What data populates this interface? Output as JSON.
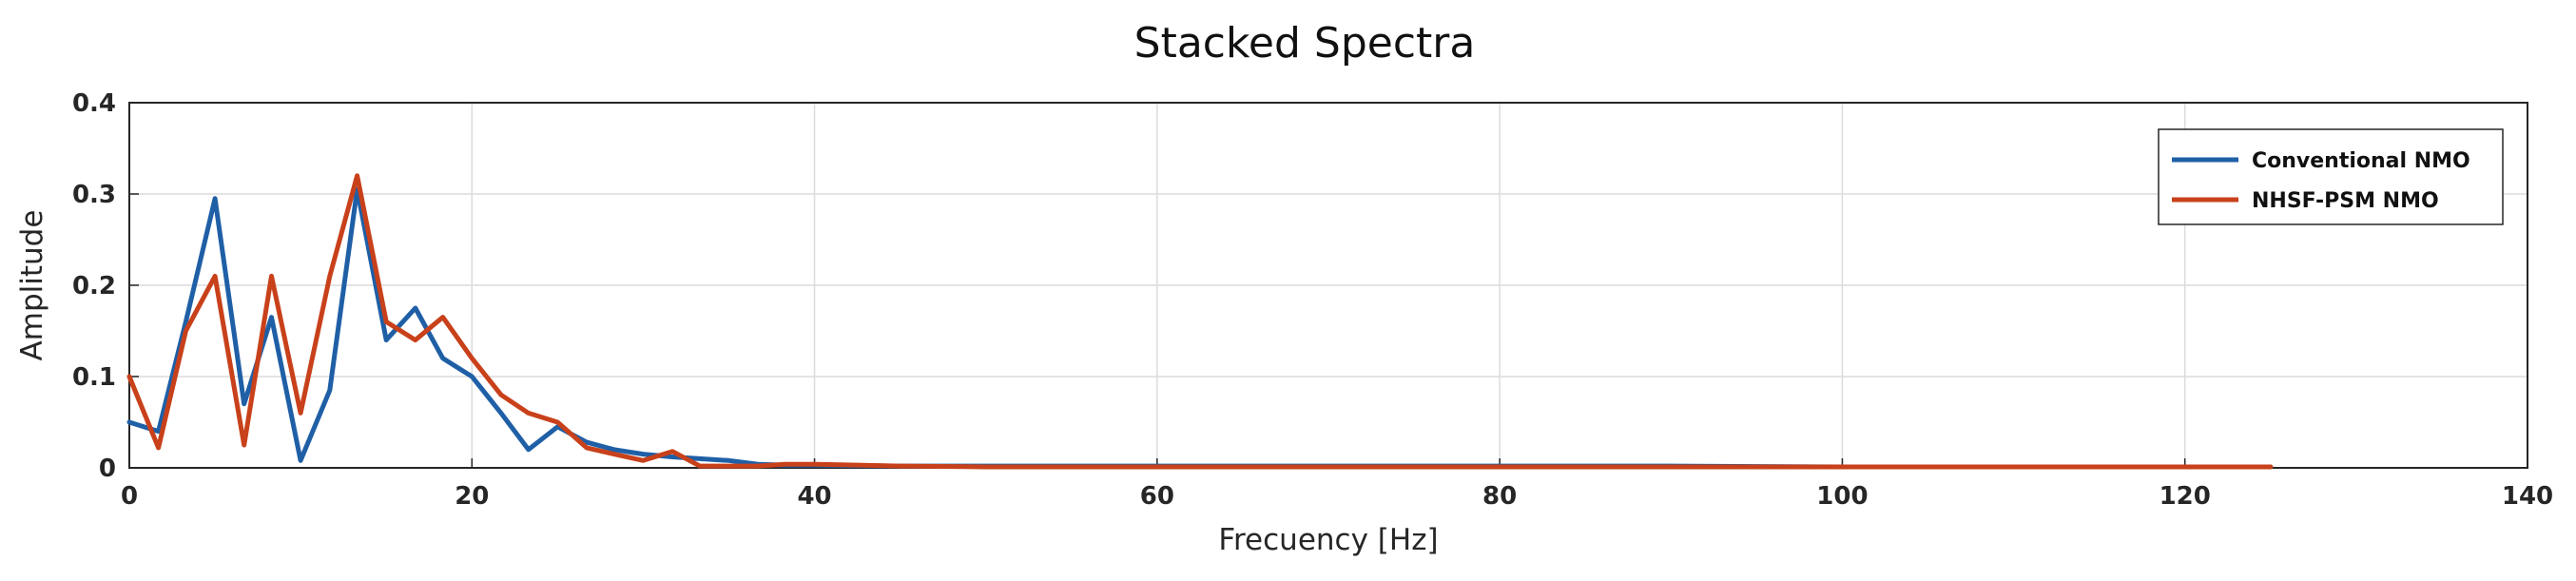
{
  "chart_data": {
    "type": "line",
    "title": "Stacked Spectra",
    "xlabel": "Frecuency [Hz]",
    "ylabel": "Amplitude",
    "xlim": [
      0,
      140
    ],
    "ylim": [
      0,
      0.4
    ],
    "xticks": [
      0,
      20,
      40,
      60,
      80,
      100,
      120,
      140
    ],
    "yticks": [
      0,
      0.1,
      0.2,
      0.3,
      0.4
    ],
    "grid": true,
    "legend_position": "top-right",
    "series": [
      {
        "name": "Conventional NMO",
        "color": "#1f5fa6",
        "x": [
          0,
          1.7,
          3.3,
          5.0,
          6.7,
          8.3,
          10.0,
          11.7,
          13.3,
          15.0,
          16.7,
          18.3,
          20.0,
          21.7,
          23.3,
          25.0,
          26.7,
          28.3,
          30.0,
          31.7,
          33.3,
          35.0,
          36.7,
          38.3,
          40.0,
          45,
          50,
          60,
          70,
          80,
          90,
          100,
          110,
          120,
          125
        ],
        "y": [
          0.05,
          0.04,
          0.16,
          0.295,
          0.07,
          0.165,
          0.008,
          0.085,
          0.305,
          0.14,
          0.175,
          0.12,
          0.1,
          0.06,
          0.02,
          0.045,
          0.028,
          0.02,
          0.015,
          0.012,
          0.01,
          0.008,
          0.004,
          0.003,
          0.003,
          0.002,
          0.002,
          0.002,
          0.002,
          0.002,
          0.002,
          0.001,
          0.001,
          0.001,
          0.001
        ]
      },
      {
        "name": "NHSF-PSM NMO",
        "color": "#c8411b",
        "x": [
          0,
          1.7,
          3.3,
          5.0,
          6.7,
          8.3,
          10.0,
          11.7,
          13.3,
          15.0,
          16.7,
          18.3,
          20.0,
          21.7,
          23.3,
          25.0,
          26.7,
          28.3,
          30.0,
          31.7,
          33.3,
          35.0,
          36.7,
          38.3,
          40.0,
          45,
          50,
          60,
          70,
          80,
          90,
          100,
          110,
          120,
          125
        ],
        "y": [
          0.1,
          0.022,
          0.15,
          0.21,
          0.025,
          0.21,
          0.06,
          0.21,
          0.32,
          0.16,
          0.14,
          0.165,
          0.12,
          0.08,
          0.06,
          0.05,
          0.022,
          0.015,
          0.008,
          0.018,
          0.002,
          0.002,
          0.002,
          0.004,
          0.004,
          0.002,
          0.001,
          0.001,
          0.001,
          0.001,
          0.001,
          0.001,
          0.001,
          0.001,
          0.001
        ]
      }
    ]
  }
}
